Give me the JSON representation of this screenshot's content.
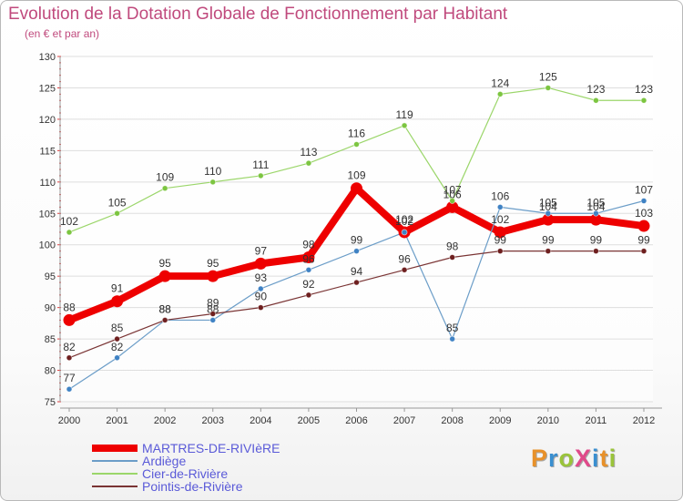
{
  "header": {
    "title": "Evolution de la Dotation Globale de Fonctionnement par Habitant",
    "subtitle": "(en € et par an)"
  },
  "logo": {
    "text": "ProXiti",
    "colors": [
      "#e8912a",
      "#3a8fd0",
      "#9ac43a",
      "#e04a8a",
      "#3a8fd0",
      "#e8912a",
      "#9ac43a"
    ]
  },
  "legend": {
    "items": [
      {
        "label": "MARTRES-DE-RIVIèRE",
        "color": "#ee0000",
        "width": "thick"
      },
      {
        "label": "Ardiège",
        "color": "#6b9dc8",
        "width": "thin"
      },
      {
        "label": "Cier-de-Rivière",
        "color": "#9bd66a",
        "width": "thin"
      },
      {
        "label": "Pointis-de-Rivière",
        "color": "#7a3434",
        "width": "thin"
      }
    ]
  },
  "chart_data": {
    "type": "line",
    "title": "Evolution de la Dotation Globale de Fonctionnement par Habitant",
    "subtitle": "(en € et par an)",
    "xlabel": "",
    "ylabel": "",
    "ylim": [
      75,
      130
    ],
    "yticks": [
      75,
      80,
      85,
      90,
      95,
      100,
      105,
      110,
      115,
      120,
      125,
      130
    ],
    "x": [
      "2000",
      "2001",
      "2002",
      "2003",
      "2004",
      "2005",
      "2006",
      "2007",
      "2008",
      "2009",
      "2010",
      "2011",
      "2012"
    ],
    "grid": "horizontal",
    "series": [
      {
        "name": "MARTRES-DE-RIVIèRE",
        "color": "#ee0000",
        "values": [
          88,
          91,
          95,
          95,
          97,
          98,
          109,
          102,
          106,
          102,
          104,
          104,
          103
        ]
      },
      {
        "name": "Ardiège",
        "color": "#6b9dc8",
        "marker": "#3f82c4",
        "values": [
          77,
          82,
          88,
          88,
          93,
          96,
          99,
          102,
          85,
          106,
          105,
          105,
          107
        ]
      },
      {
        "name": "Cier-de-Rivière",
        "color": "#9bd66a",
        "marker": "#7cc540",
        "values": [
          102,
          105,
          109,
          110,
          111,
          113,
          116,
          119,
          107,
          124,
          125,
          123,
          123
        ]
      },
      {
        "name": "Pointis-de-Rivière",
        "color": "#7a3434",
        "marker": "#6e1f1f",
        "values": [
          82,
          85,
          88,
          89,
          90,
          92,
          94,
          96,
          98,
          99,
          99,
          99,
          99
        ]
      }
    ]
  }
}
